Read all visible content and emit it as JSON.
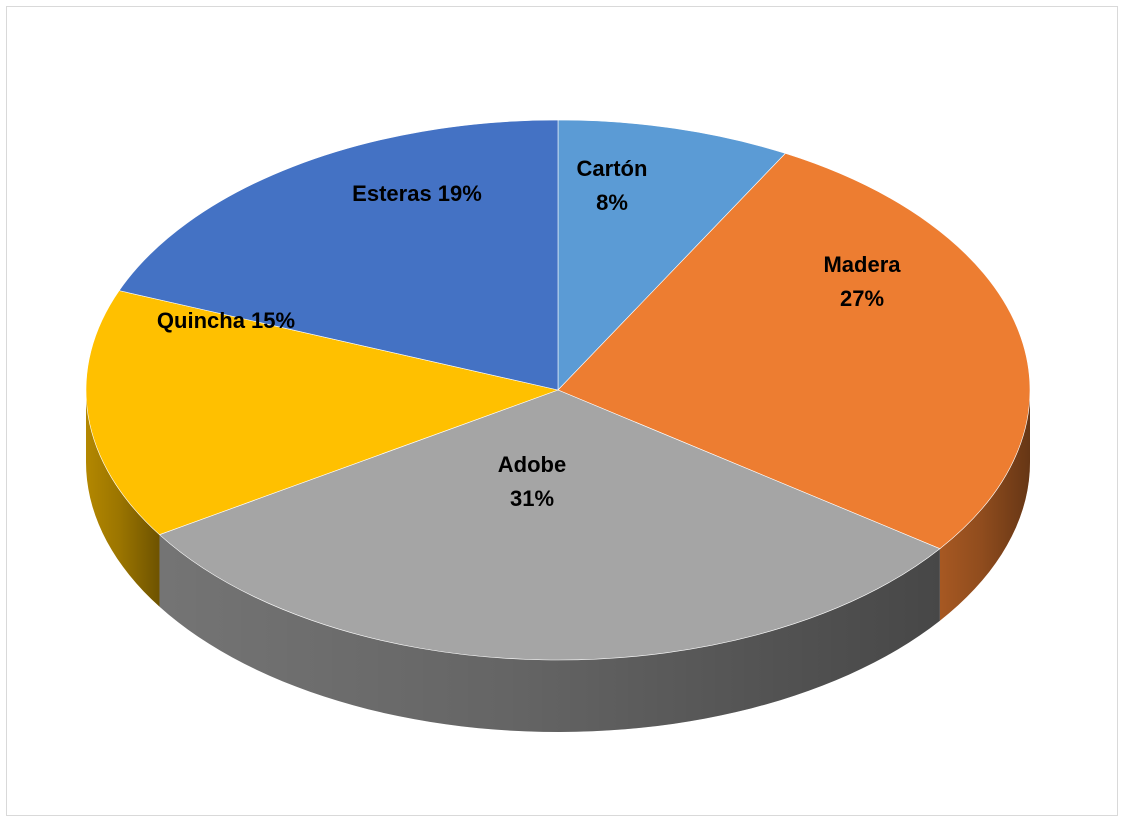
{
  "chart_data": {
    "type": "pie",
    "style": "3d",
    "title": "",
    "slices": [
      {
        "category": "Cartón",
        "value": 8,
        "percent_label": "8%",
        "color": "#5b9bd5",
        "label_layout": "two-line"
      },
      {
        "category": "Madera",
        "value": 27,
        "percent_label": "27%",
        "color": "#ed7d31",
        "label_layout": "two-line"
      },
      {
        "category": "Adobe",
        "value": 31,
        "percent_label": "31%",
        "color": "#a5a5a5",
        "label_layout": "two-line"
      },
      {
        "category": "Quincha",
        "value": 15,
        "percent_label": "15%",
        "color": "#ffc000",
        "label_layout": "one-line"
      },
      {
        "category": "Esteras",
        "value": 19,
        "percent_label": "19%",
        "color": "#4472c4",
        "label_layout": "one-line"
      }
    ],
    "labels": "inside",
    "legend": "none",
    "start": "top",
    "direction": "clockwise"
  }
}
